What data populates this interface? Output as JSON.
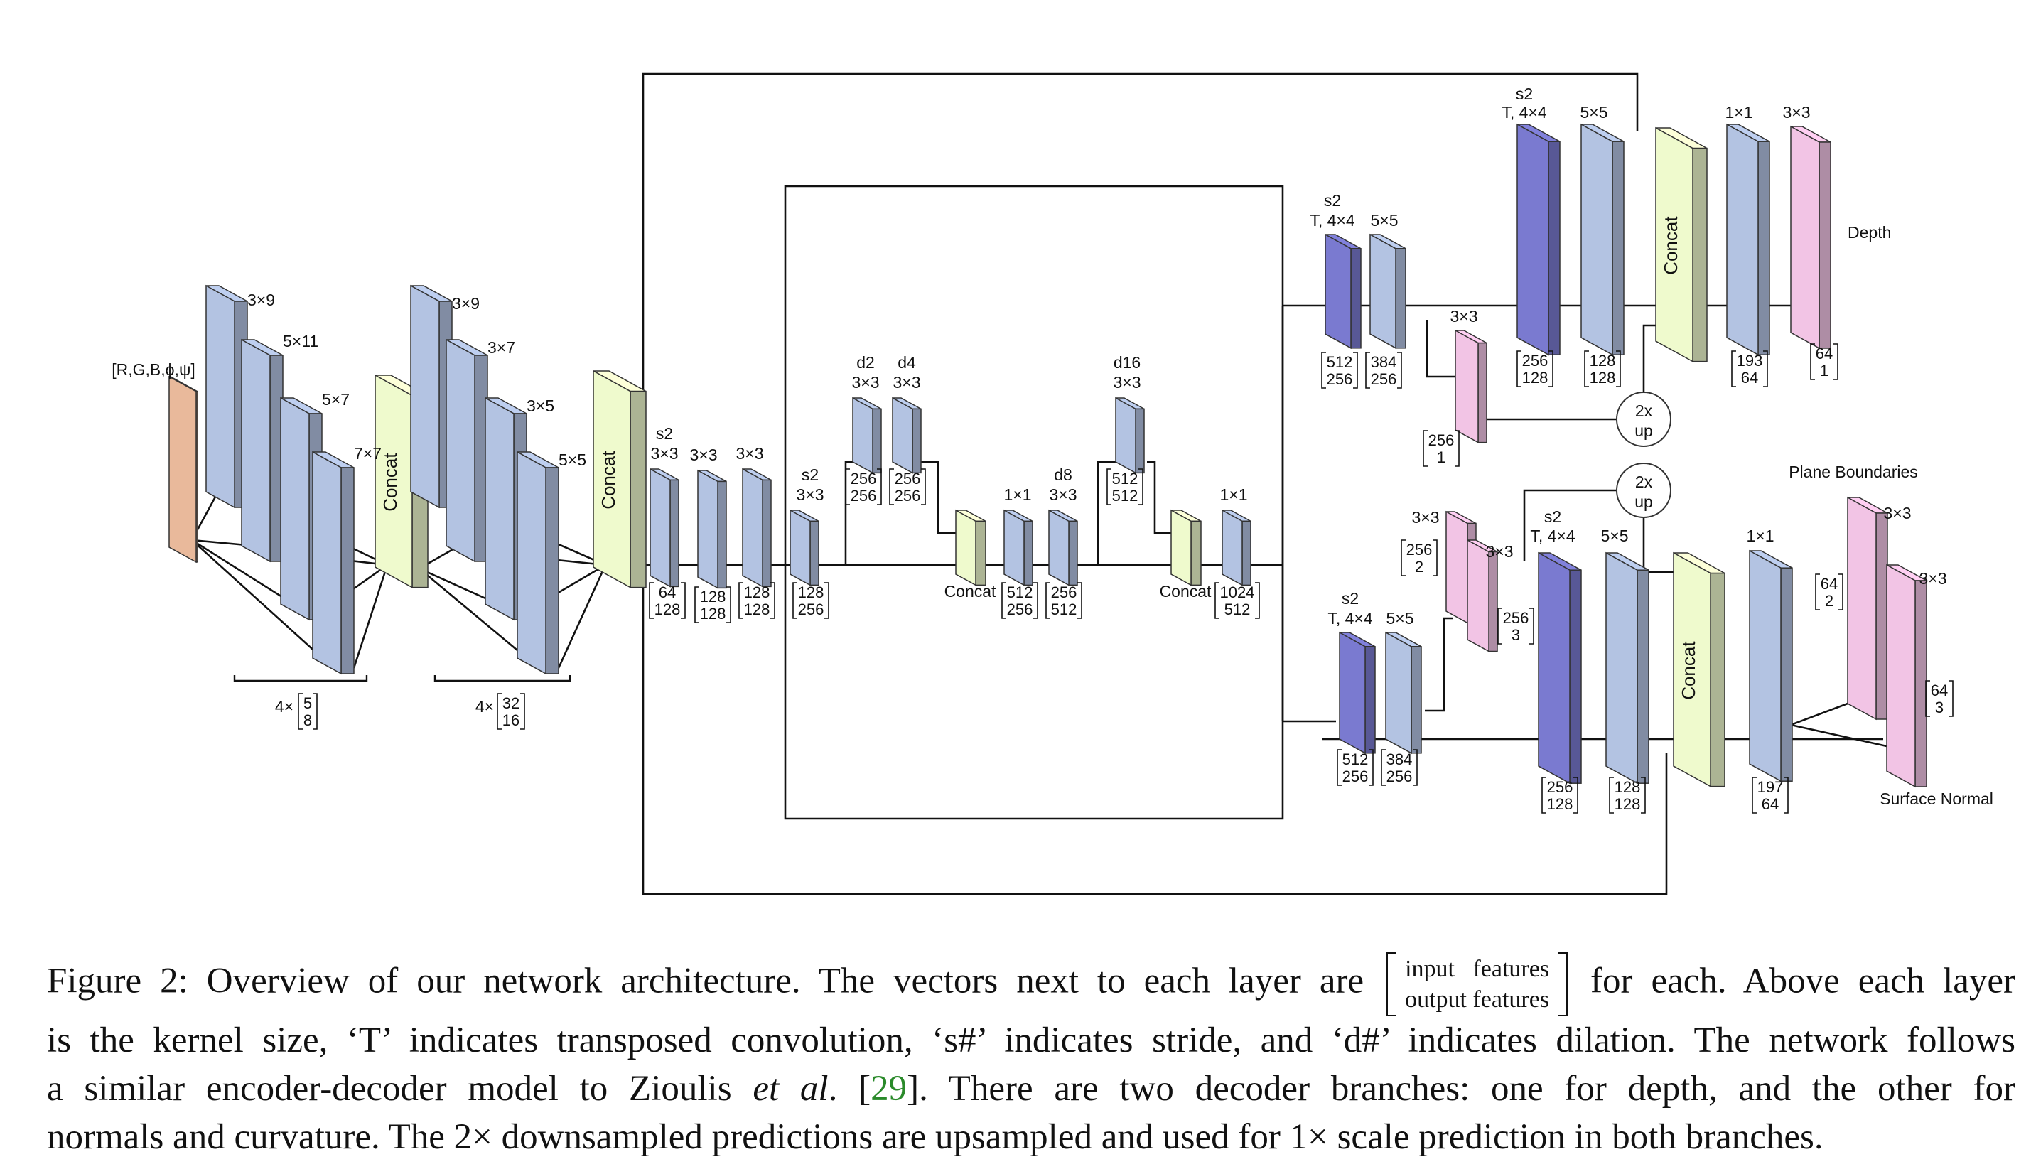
{
  "figure": {
    "input_label": "[R,G,B,ϕ,ψ]",
    "concat_label": "Concat",
    "encoder": {
      "block1_kernels": [
        "3×9",
        "5×11",
        "5×7",
        "7×7"
      ],
      "block1_mult": "4×",
      "block1_vec": [
        "5",
        "8"
      ],
      "block2_kernels": [
        "3×9",
        "3×7",
        "3×5",
        "5×5"
      ],
      "block2_mult": "4×",
      "block2_vec": [
        "32",
        "16"
      ]
    },
    "trunk": [
      {
        "k1": "s2",
        "k2": "3×3",
        "v1": "64",
        "v2": "128"
      },
      {
        "k1": "",
        "k2": "3×3",
        "v1": "128",
        "v2": "128"
      },
      {
        "k1": "",
        "k2": "3×3",
        "v1": "128",
        "v2": "128"
      },
      {
        "k1": "s2",
        "k2": "3×3",
        "v1": "128",
        "v2": "256"
      },
      {
        "k1": "d2",
        "k2": "3×3",
        "v1": "256",
        "v2": "256"
      },
      {
        "k1": "d4",
        "k2": "3×3",
        "v1": "256",
        "v2": "256"
      },
      {
        "k1": "",
        "k2": "1×1",
        "v1": "512",
        "v2": "256"
      },
      {
        "k1": "d8",
        "k2": "3×3",
        "v1": "256",
        "v2": "512"
      },
      {
        "k1": "d16",
        "k2": "3×3",
        "v1": "512",
        "v2": "512"
      },
      {
        "k1": "",
        "k2": "1×1",
        "v1": "1024",
        "v2": "512"
      }
    ],
    "depth_branch": {
      "l1": {
        "k1": "s2",
        "k2": "T, 4×4",
        "v1": "512",
        "v2": "256"
      },
      "l2": {
        "k2": "5×5",
        "v1": "384",
        "v2": "256"
      },
      "side": {
        "k2": "3×3",
        "v1": "256",
        "v2": "1"
      },
      "l3": {
        "k1": "s2",
        "k2": "T, 4×4",
        "v1": "256",
        "v2": "128"
      },
      "l4": {
        "k2": "5×5",
        "v1": "128",
        "v2": "128"
      },
      "l5": {
        "k2": "1×1",
        "v1": "193",
        "v2": "64"
      },
      "l6": {
        "k2": "3×3",
        "v1": "64",
        "v2": "1"
      },
      "up_label": [
        "2x",
        "up"
      ],
      "output": "Depth"
    },
    "normal_branch": {
      "l1": {
        "k1": "s2",
        "k2": "T, 4×4",
        "v1": "512",
        "v2": "256"
      },
      "l2": {
        "k2": "5×5",
        "v1": "384",
        "v2": "256"
      },
      "side1": {
        "k2": "3×3",
        "v1": "256",
        "v2": "2"
      },
      "side2": {
        "k2": "3×3",
        "v1": "256",
        "v2": "3"
      },
      "l3": {
        "k1": "s2",
        "k2": "T, 4×4",
        "v1": "256",
        "v2": "128"
      },
      "l4": {
        "k2": "5×5",
        "v1": "128",
        "v2": "128"
      },
      "l5": {
        "k2": "1×1",
        "v1": "197",
        "v2": "64"
      },
      "out_pb": {
        "k2": "3×3",
        "v1": "64",
        "v2": "2"
      },
      "out_sn": {
        "k2": "3×3",
        "v1": "64",
        "v2": "3"
      },
      "up_label": [
        "2x",
        "up"
      ],
      "output_pb": "Plane Boundaries",
      "output_sn": "Surface Normal"
    }
  },
  "caption": {
    "l1_a": "Figure 2: Overview of our network architecture. The vectors next to each layer are",
    "matrix_top": "input features",
    "matrix_bottom": "output features",
    "l1_b": "for each. Above each layer",
    "l2": "is the kernel size, ‘T’ indicates transposed convolution, ‘s#’ indicates stride, and ‘d#’ indicates dilation. The network follows",
    "l3_a": "a similar encoder-decoder model to Zioulis",
    "l3_etal": "et al",
    "l3_b": ". [",
    "l3_cite": "29",
    "l3_c": "].  There are two decoder branches:  one for depth, and the other for",
    "l4": "normals and curvature. The 2× downsampled predictions are upsampled and used for 1× scale prediction in both branches."
  },
  "colors": {
    "conv": "#b3c3e2",
    "conv_dark": "#7585b6",
    "transposed": "#7a7ad0",
    "pink": "#f2c4e5",
    "concat": "#effacd",
    "input": "#e9b99b"
  }
}
